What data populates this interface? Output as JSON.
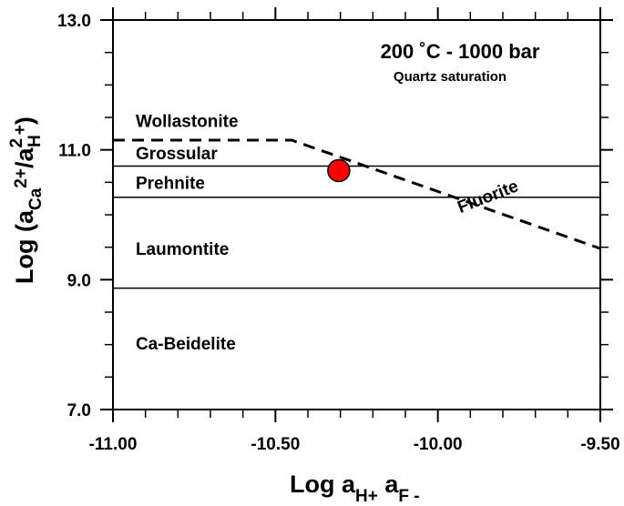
{
  "chart_data": {
    "type": "line",
    "title": "200 ˚C  -  1000 bar",
    "subtitle": "Quartz saturation",
    "xlabel": {
      "base": "Log a",
      "sub1": "H+",
      "mid": " a",
      "sub2": "F -"
    },
    "ylabel": {
      "base": "Log (a",
      "sub1": "Ca",
      "sup1": "2+",
      "mid": "/a",
      "sup2": "2",
      "sub2": "H",
      "sup3": "+",
      "tail": ")"
    },
    "xlim": [
      -11.0,
      -9.5
    ],
    "ylim": [
      7.0,
      13.0
    ],
    "x_ticks": [
      -11.0,
      -10.5,
      -10.0,
      -9.5
    ],
    "x_tick_labels": [
      "-11.00",
      "-10.50",
      "-10.00",
      "-9.50"
    ],
    "y_ticks": [
      7.0,
      9.0,
      11.0,
      13.0
    ],
    "y_tick_labels": [
      "7.0",
      "9.0",
      "11.0",
      "13.0"
    ],
    "x_minor_step": 0.1,
    "y_minor_step": 0.5,
    "grid": false,
    "boundaries": [
      {
        "name": "grossular-prehnite",
        "style": "solid",
        "points": [
          [
            -11.0,
            10.75
          ],
          [
            -9.5,
            10.75
          ]
        ]
      },
      {
        "name": "prehnite-laumontite",
        "style": "solid",
        "points": [
          [
            -11.0,
            10.27
          ],
          [
            -9.5,
            10.27
          ]
        ]
      },
      {
        "name": "laumontite-beidelite",
        "style": "solid",
        "points": [
          [
            -11.0,
            8.87
          ],
          [
            -9.5,
            8.87
          ]
        ]
      },
      {
        "name": "fluorite-saturation",
        "style": "dashed",
        "points": [
          [
            -11.0,
            11.15
          ],
          [
            -10.45,
            11.15
          ],
          [
            -9.5,
            9.48
          ]
        ]
      }
    ],
    "fields": [
      {
        "label": "Wollastonite",
        "x": -10.93,
        "y": 11.45
      },
      {
        "label": "Grossular",
        "x": -10.93,
        "y": 10.95
      },
      {
        "label": "Prehnite",
        "x": -10.93,
        "y": 10.5
      },
      {
        "label": "Laumontite",
        "x": -10.93,
        "y": 9.48
      },
      {
        "label": "Ca-Beidelite",
        "x": -10.93,
        "y": 8.02
      }
    ],
    "line_labels": [
      {
        "label": "Fluorite",
        "x": -9.84,
        "y": 10.2,
        "rotate": -21
      }
    ],
    "points": [
      {
        "name": "sample-point",
        "x": -10.305,
        "y": 10.68,
        "color": "#ff0000"
      }
    ]
  }
}
